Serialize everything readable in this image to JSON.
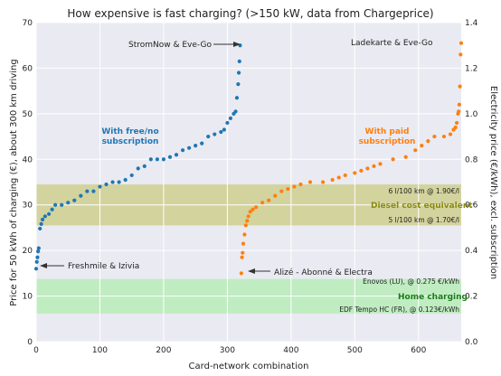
{
  "chart_data": {
    "type": "scatter",
    "title": "How expensive is fast charging? (>150 kW, data from Chargeprice)",
    "xlabel": "Card-network combination",
    "ylabel": "Price for 50 kWh of charging (€), about 300 km driving",
    "y2label": "Electricity price (€/kWh), excl. subscription",
    "xlim": [
      0,
      667
    ],
    "ylim": [
      0,
      70
    ],
    "y2lim": [
      0,
      1.4
    ],
    "xticks": [
      0,
      100,
      200,
      300,
      400,
      500,
      600
    ],
    "yticks": [
      0,
      10,
      20,
      30,
      40,
      50,
      60,
      70
    ],
    "y2ticks": [
      0.0,
      0.2,
      0.4,
      0.6,
      0.8,
      1.0,
      1.2,
      1.4
    ],
    "grid": true,
    "bands": [
      {
        "name": "Diesel cost equivalent",
        "ymin": 25.5,
        "ymax": 34.5,
        "color": "#cfcf8f",
        "upper_note": "6 l/100 km @ 1.90€/l",
        "lower_note": "5 l/100 km @ 1.70€/l"
      },
      {
        "name": "Home charging",
        "ymin": 6.15,
        "ymax": 13.75,
        "color": "#b8ecb8",
        "upper_note": "Enovos (LU), @ 0.275 €/kWh",
        "lower_note": "EDF Tempo HC (FR), @ 0.123€/kWh"
      }
    ],
    "series": [
      {
        "name": "With free/no subscription",
        "color": "#1f77b4",
        "points": [
          [
            0,
            16
          ],
          [
            1,
            17.5
          ],
          [
            2,
            18.5
          ],
          [
            3,
            19.8
          ],
          [
            4,
            20.5
          ],
          [
            6,
            24.8
          ],
          [
            8,
            25.8
          ],
          [
            10,
            26.8
          ],
          [
            14,
            27.5
          ],
          [
            20,
            28
          ],
          [
            25,
            29
          ],
          [
            30,
            30
          ],
          [
            40,
            30
          ],
          [
            50,
            30.5
          ],
          [
            60,
            31
          ],
          [
            70,
            32
          ],
          [
            80,
            33
          ],
          [
            90,
            33
          ],
          [
            100,
            34
          ],
          [
            110,
            34.5
          ],
          [
            120,
            35
          ],
          [
            130,
            35
          ],
          [
            140,
            35.5
          ],
          [
            150,
            36.5
          ],
          [
            160,
            38
          ],
          [
            170,
            38.5
          ],
          [
            180,
            40
          ],
          [
            190,
            40
          ],
          [
            200,
            40
          ],
          [
            210,
            40.5
          ],
          [
            220,
            41
          ],
          [
            230,
            42
          ],
          [
            240,
            42.5
          ],
          [
            250,
            43
          ],
          [
            260,
            43.5
          ],
          [
            270,
            45
          ],
          [
            280,
            45.5
          ],
          [
            290,
            46
          ],
          [
            295,
            46.5
          ],
          [
            300,
            48
          ],
          [
            305,
            49
          ],
          [
            310,
            50
          ],
          [
            313,
            50.5
          ],
          [
            315,
            53.5
          ],
          [
            317,
            56.5
          ],
          [
            318,
            59
          ],
          [
            319,
            61.5
          ],
          [
            320,
            65
          ]
        ]
      },
      {
        "name": "With paid subscription",
        "color": "#ff7f0e",
        "points": [
          [
            322,
            15
          ],
          [
            323,
            18.5
          ],
          [
            324,
            19.5
          ],
          [
            325,
            21.5
          ],
          [
            327,
            23.5
          ],
          [
            329,
            25.5
          ],
          [
            331,
            26.5
          ],
          [
            333,
            27.5
          ],
          [
            336,
            28.5
          ],
          [
            340,
            29
          ],
          [
            345,
            29.5
          ],
          [
            355,
            30.5
          ],
          [
            365,
            31
          ],
          [
            375,
            32
          ],
          [
            385,
            33
          ],
          [
            395,
            33.5
          ],
          [
            405,
            34
          ],
          [
            415,
            34.5
          ],
          [
            430,
            35
          ],
          [
            450,
            35
          ],
          [
            465,
            35.5
          ],
          [
            475,
            36
          ],
          [
            485,
            36.5
          ],
          [
            500,
            37
          ],
          [
            510,
            37.5
          ],
          [
            520,
            38
          ],
          [
            530,
            38.5
          ],
          [
            540,
            39
          ],
          [
            560,
            40
          ],
          [
            580,
            40.5
          ],
          [
            595,
            42
          ],
          [
            605,
            43
          ],
          [
            615,
            44
          ],
          [
            625,
            45
          ],
          [
            640,
            45
          ],
          [
            650,
            45.5
          ],
          [
            655,
            46.5
          ],
          [
            658,
            47
          ],
          [
            660,
            48
          ],
          [
            662,
            50
          ],
          [
            663,
            50.5
          ],
          [
            664,
            52
          ],
          [
            665,
            56
          ],
          [
            666,
            63
          ],
          [
            667,
            65.5
          ]
        ]
      }
    ],
    "annotations": [
      {
        "text": "StromNow & Eve-Go"
      },
      {
        "text": "Ladekarte & Eve-Go"
      },
      {
        "text": "Freshmile & Izivia"
      },
      {
        "text": "Alizé - Abonné & Electra"
      }
    ],
    "series_labels": [
      {
        "lines": [
          "With free/no",
          "subscription"
        ],
        "color": "#1f77b4"
      },
      {
        "lines": [
          "With paid",
          "subscription"
        ],
        "color": "#ff7f0e"
      }
    ]
  }
}
